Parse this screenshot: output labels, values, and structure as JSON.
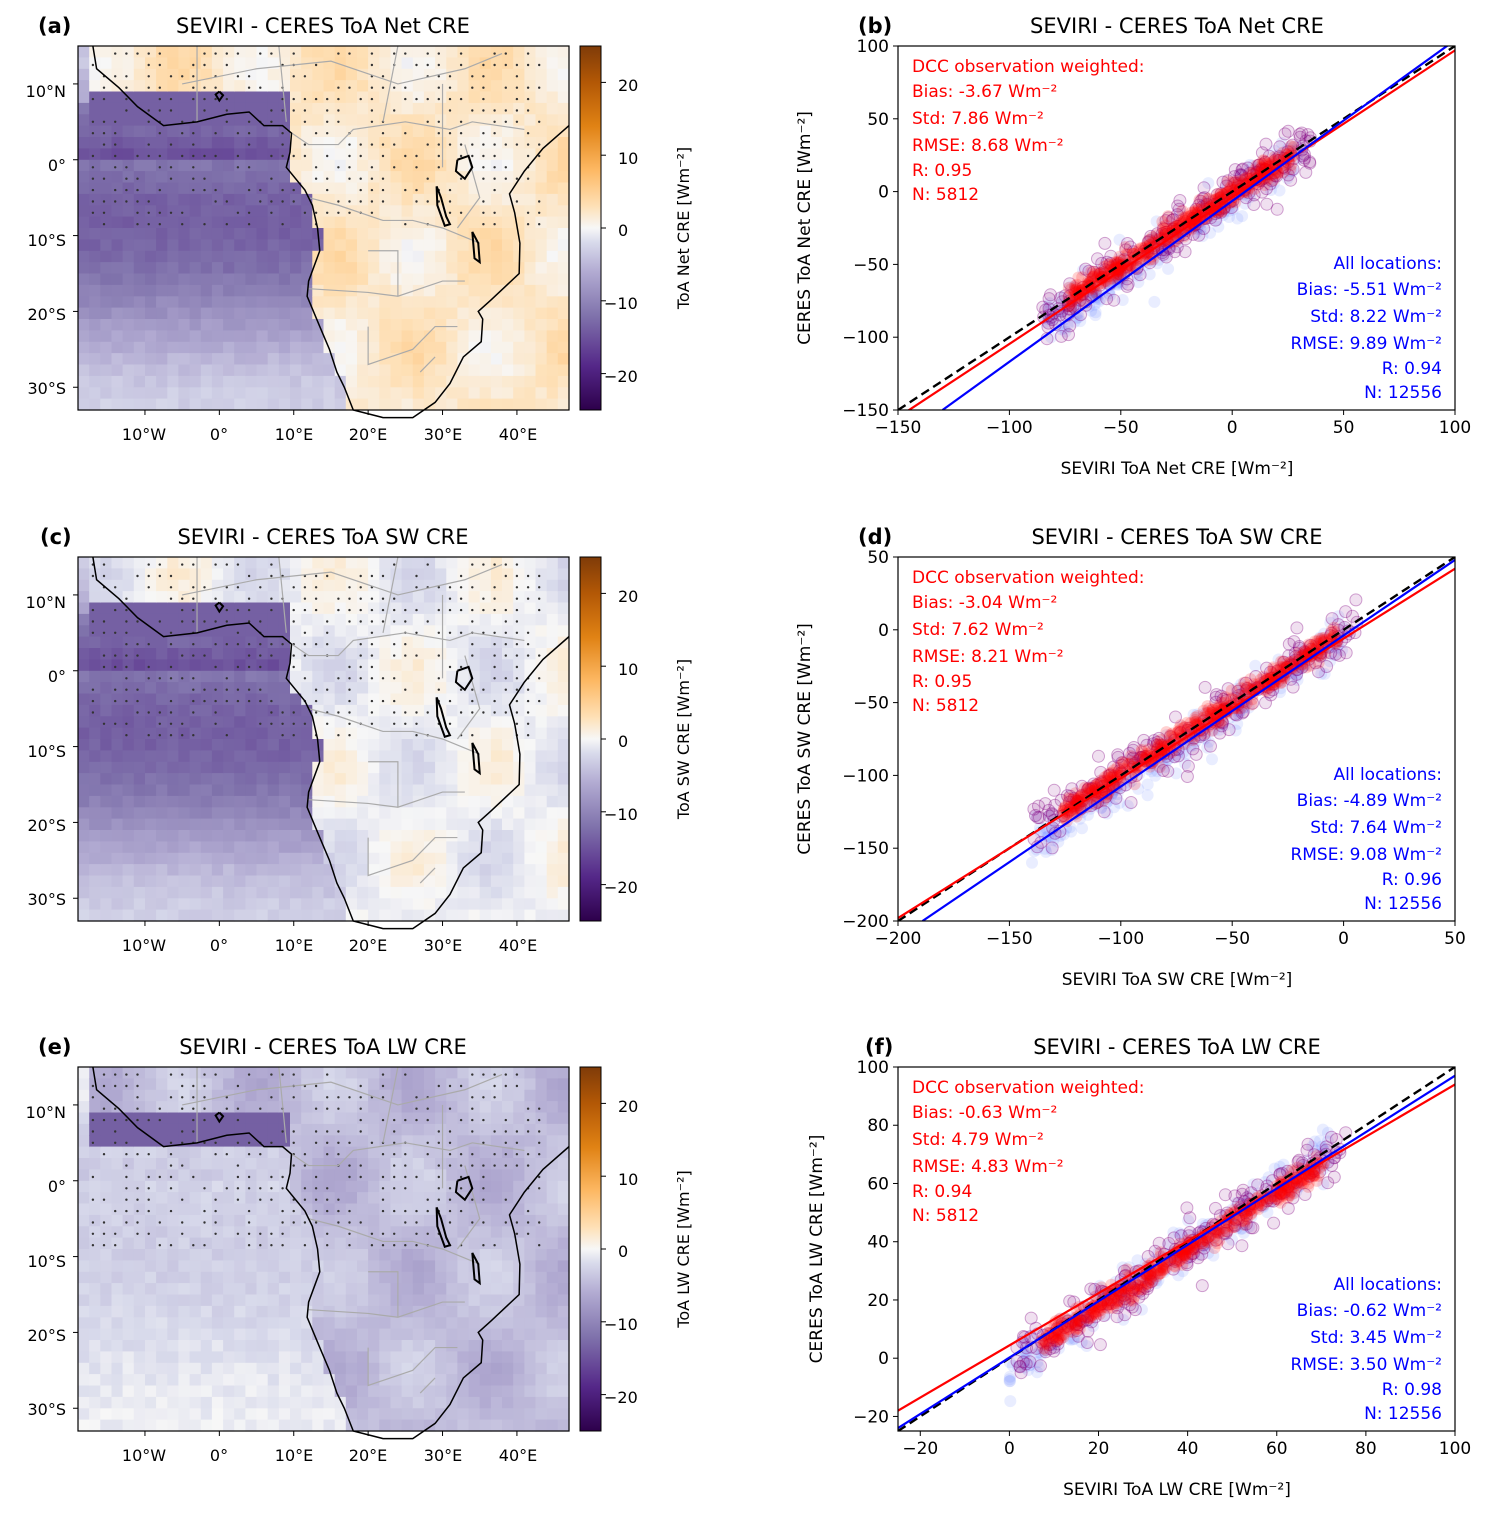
{
  "colors": {
    "dcc": "#ff0000",
    "all": "#0000ff",
    "one_to_one": "#000000",
    "dcc_points": "#800080",
    "all_points": "#4b6bff",
    "cmap_neg": "#2d004b",
    "cmap_mid": "#f7f7f7",
    "cmap_pos": "#7f3b08"
  },
  "maps": [
    {
      "panel_label": "(a)",
      "title": "SEVIRI - CERES ToA Net CRE",
      "colorbar_label": "ToA Net CRE [Wm⁻²]",
      "colorbar_ticks": [
        "20",
        "10",
        "0",
        "−10",
        "−20"
      ],
      "colorbar_range": [
        -25,
        25
      ],
      "lat_ticks": [
        "10°N",
        "0°",
        "10°S",
        "20°S",
        "30°S"
      ],
      "lon_ticks": [
        "10°W",
        "0°",
        "10°E",
        "20°E",
        "30°E",
        "40°E"
      ],
      "ocean_level": 0.55,
      "land_level": 0.08,
      "dots_extent": "tropical land"
    },
    {
      "panel_label": "(c)",
      "title": "SEVIRI - CERES ToA SW CRE",
      "colorbar_label": "ToA SW CRE [Wm⁻²]",
      "colorbar_ticks": [
        "20",
        "10",
        "0",
        "−10",
        "−20"
      ],
      "colorbar_range": [
        -25,
        25
      ],
      "lat_ticks": [
        "10°N",
        "0°",
        "10°S",
        "20°S",
        "30°S"
      ],
      "lon_ticks": [
        "10°W",
        "0°",
        "10°E",
        "20°E",
        "30°E",
        "40°E"
      ],
      "ocean_level": 0.55,
      "land_level": -0.02,
      "dots_extent": "tropical land"
    },
    {
      "panel_label": "(e)",
      "title": "SEVIRI - CERES ToA LW CRE",
      "colorbar_label": "ToA LW CRE [Wm⁻²]",
      "colorbar_ticks": [
        "20",
        "10",
        "0",
        "−10",
        "−20"
      ],
      "colorbar_range": [
        -25,
        25
      ],
      "lat_ticks": [
        "10°N",
        "0°",
        "10°S",
        "20°S",
        "30°S"
      ],
      "lon_ticks": [
        "10°W",
        "0°",
        "10°E",
        "20°E",
        "30°E",
        "40°E"
      ],
      "ocean_level": 0.12,
      "land_level": -0.18,
      "dots_extent": "tropical land"
    }
  ],
  "chart_data": [
    {
      "type": "scatter",
      "panel_label": "(b)",
      "title": "SEVIRI - CERES ToA Net CRE",
      "xlabel": "SEVIRI ToA Net CRE [Wm⁻²]",
      "ylabel": "CERES ToA Net CRE [Wm⁻²]",
      "xlim": [
        -150,
        100
      ],
      "ylim": [
        -150,
        100
      ],
      "xticks": [
        "−150",
        "−100",
        "−50",
        "0",
        "50",
        "100"
      ],
      "yticks": [
        "100",
        "50",
        "0",
        "−50",
        "−100",
        "−150"
      ],
      "xtick_values": [
        -150,
        -100,
        -50,
        0,
        50,
        100
      ],
      "ytick_values": [
        100,
        50,
        0,
        -50,
        -100,
        -150
      ],
      "dcc_stats": [
        "DCC observation weighted:",
        "Bias: -3.67 Wm⁻²",
        "Std: 7.86 Wm⁻²",
        "RMSE: 8.68 Wm⁻²",
        "R: 0.95",
        "N: 5812"
      ],
      "all_stats": [
        "All locations:",
        "Bias: -5.51 Wm⁻²",
        "Std: 8.22 Wm⁻²",
        "RMSE: 9.89 Wm⁻²",
        "R: 0.94",
        "N: 12556"
      ],
      "lines": {
        "one_to_one": [
          [
            -150,
            -150
          ],
          [
            100,
            100
          ]
        ],
        "dcc_fit": [
          [
            -150,
            -155
          ],
          [
            100,
            97
          ]
        ],
        "all_fit": [
          [
            -130,
            -150
          ],
          [
            100,
            104
          ]
        ]
      },
      "cloud_range": [
        -85,
        30
      ],
      "scatter_spread": 8
    },
    {
      "type": "scatter",
      "panel_label": "(d)",
      "title": "SEVIRI - CERES ToA SW CRE",
      "xlabel": "SEVIRI ToA SW CRE [Wm⁻²]",
      "ylabel": "CERES ToA SW CRE [Wm⁻²]",
      "xlim": [
        -200,
        50
      ],
      "ylim": [
        -200,
        50
      ],
      "xticks": [
        "−200",
        "−150",
        "−100",
        "−50",
        "0",
        "50"
      ],
      "yticks": [
        "50",
        "0",
        "−50",
        "−100",
        "−150",
        "−200"
      ],
      "xtick_values": [
        -200,
        -150,
        -100,
        -50,
        0,
        50
      ],
      "ytick_values": [
        50,
        0,
        -50,
        -100,
        -150,
        -200
      ],
      "dcc_stats": [
        "DCC observation weighted:",
        "Bias: -3.04 Wm⁻²",
        "Std: 7.62 Wm⁻²",
        "RMSE: 8.21 Wm⁻²",
        "R: 0.95",
        "N: 5812"
      ],
      "all_stats": [
        "All locations:",
        "Bias: -4.89 Wm⁻²",
        "Std: 7.64 Wm⁻²",
        "RMSE: 9.08 Wm⁻²",
        "R: 0.96",
        "N: 12556"
      ],
      "lines": {
        "one_to_one": [
          [
            -200,
            -200
          ],
          [
            50,
            50
          ]
        ],
        "dcc_fit": [
          [
            -200,
            -198
          ],
          [
            50,
            42
          ]
        ],
        "all_fit": [
          [
            -189,
            -200
          ],
          [
            50,
            48
          ]
        ]
      },
      "cloud_range": [
        -140,
        0
      ],
      "scatter_spread": 8
    },
    {
      "type": "scatter",
      "panel_label": "(f)",
      "title": "SEVIRI - CERES ToA LW CRE",
      "xlabel": "SEVIRI ToA LW CRE [Wm⁻²]",
      "ylabel": "CERES ToA LW CRE [Wm⁻²]",
      "xlim": [
        -25,
        100
      ],
      "ylim": [
        -25,
        100
      ],
      "xticks": [
        "−20",
        "0",
        "20",
        "40",
        "60",
        "80",
        "100"
      ],
      "yticks": [
        "100",
        "80",
        "60",
        "40",
        "20",
        "0",
        "−20"
      ],
      "xtick_values": [
        -20,
        0,
        20,
        40,
        60,
        80,
        100
      ],
      "ytick_values": [
        100,
        80,
        60,
        40,
        20,
        0,
        -20
      ],
      "dcc_stats": [
        "DCC observation weighted:",
        "Bias: -0.63 Wm⁻²",
        "Std: 4.79 Wm⁻²",
        "RMSE: 4.83 Wm⁻²",
        "R: 0.94",
        "N: 5812"
      ],
      "all_stats": [
        "All locations:",
        "Bias: -0.62 Wm⁻²",
        "Std: 3.45 Wm⁻²",
        "RMSE: 3.50 Wm⁻²",
        "R: 0.98",
        "N: 12556"
      ],
      "lines": {
        "one_to_one": [
          [
            -25,
            -25
          ],
          [
            100,
            100
          ]
        ],
        "dcc_fit": [
          [
            -25,
            -18
          ],
          [
            100,
            94
          ]
        ],
        "all_fit": [
          [
            -25,
            -24
          ],
          [
            100,
            97
          ]
        ]
      },
      "cloud_range": [
        0,
        72
      ],
      "scatter_spread": 4
    }
  ]
}
